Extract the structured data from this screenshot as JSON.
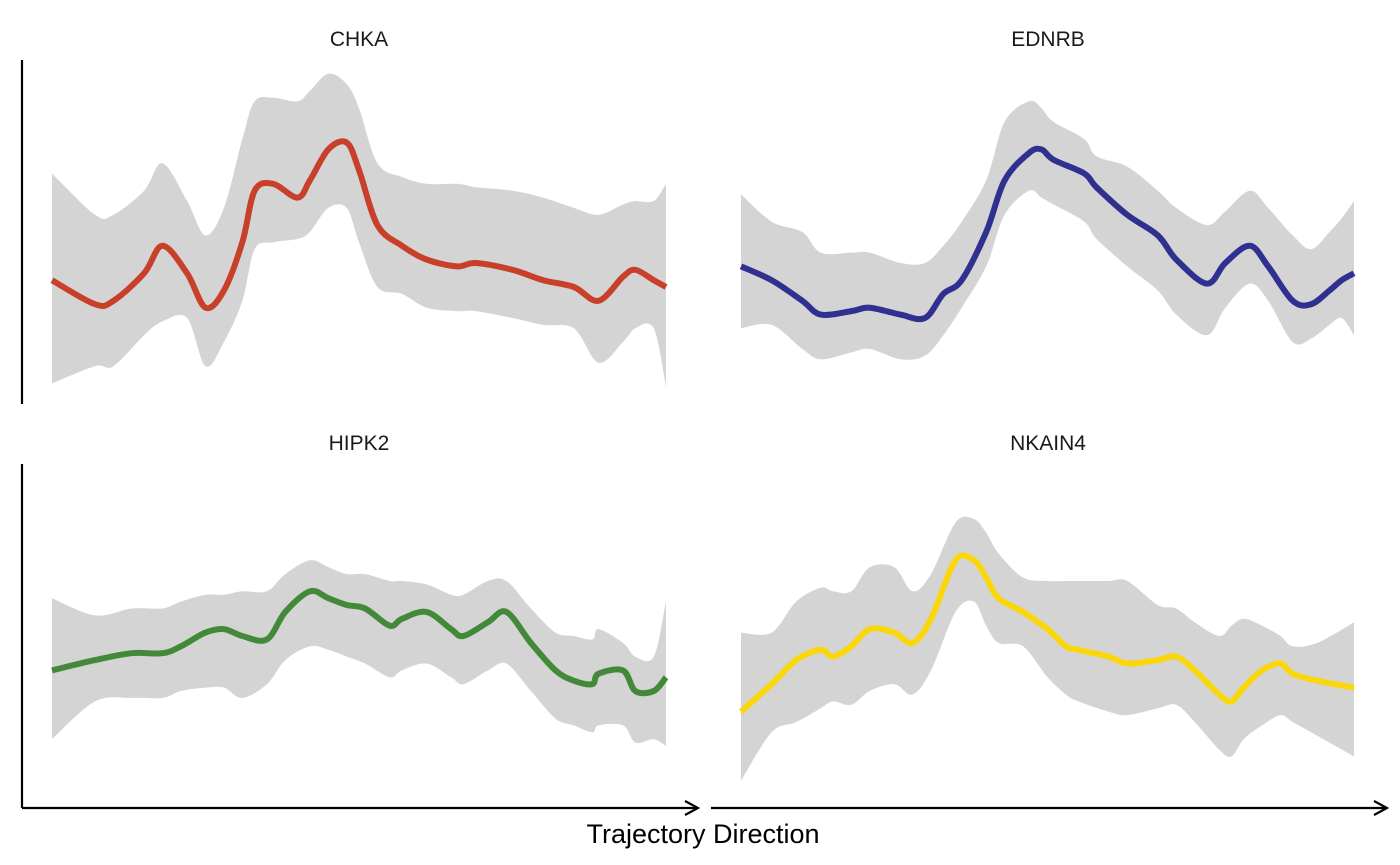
{
  "chart_data": {
    "type": "line",
    "xlabel": "Trajectory Direction",
    "grid": false,
    "x_range": [
      0,
      1
    ],
    "y_range": [
      0,
      1
    ],
    "panels": [
      {
        "title": "CHKA",
        "color": "#c8402a",
        "x": [
          0.0,
          0.07,
          0.1,
          0.15,
          0.18,
          0.22,
          0.25,
          0.28,
          0.31,
          0.33,
          0.36,
          0.4,
          0.42,
          0.45,
          0.48,
          0.5,
          0.53,
          0.57,
          0.61,
          0.66,
          0.69,
          0.75,
          0.8,
          0.85,
          0.89,
          0.93,
          0.95,
          0.98,
          1.0
        ],
        "y": [
          0.36,
          0.29,
          0.3,
          0.38,
          0.46,
          0.38,
          0.28,
          0.33,
          0.47,
          0.62,
          0.64,
          0.6,
          0.65,
          0.74,
          0.76,
          0.68,
          0.52,
          0.46,
          0.42,
          0.4,
          0.41,
          0.39,
          0.36,
          0.34,
          0.3,
          0.37,
          0.39,
          0.36,
          0.34
        ],
        "lower": [
          0.06,
          0.11,
          0.11,
          0.2,
          0.24,
          0.25,
          0.11,
          0.18,
          0.3,
          0.45,
          0.47,
          0.48,
          0.5,
          0.57,
          0.57,
          0.47,
          0.34,
          0.32,
          0.28,
          0.27,
          0.27,
          0.25,
          0.23,
          0.22,
          0.12,
          0.18,
          0.22,
          0.22,
          0.05
        ],
        "upper": [
          0.67,
          0.55,
          0.55,
          0.62,
          0.7,
          0.59,
          0.49,
          0.57,
          0.77,
          0.88,
          0.89,
          0.88,
          0.91,
          0.96,
          0.93,
          0.86,
          0.7,
          0.66,
          0.64,
          0.64,
          0.63,
          0.62,
          0.6,
          0.57,
          0.55,
          0.58,
          0.59,
          0.59,
          0.64
        ]
      },
      {
        "title": "EDNRB",
        "color": "#303090",
        "x": [
          0.0,
          0.05,
          0.1,
          0.13,
          0.18,
          0.21,
          0.26,
          0.3,
          0.33,
          0.36,
          0.4,
          0.43,
          0.47,
          0.49,
          0.51,
          0.56,
          0.58,
          0.63,
          0.68,
          0.71,
          0.76,
          0.79,
          0.83,
          0.86,
          0.9,
          0.93,
          0.96,
          0.98,
          1.0
        ],
        "y": [
          0.4,
          0.36,
          0.3,
          0.26,
          0.27,
          0.28,
          0.26,
          0.25,
          0.32,
          0.36,
          0.5,
          0.65,
          0.73,
          0.74,
          0.71,
          0.67,
          0.63,
          0.55,
          0.49,
          0.42,
          0.35,
          0.41,
          0.46,
          0.4,
          0.3,
          0.29,
          0.33,
          0.36,
          0.38
        ],
        "lower": [
          0.22,
          0.23,
          0.16,
          0.13,
          0.15,
          0.16,
          0.13,
          0.14,
          0.2,
          0.28,
          0.4,
          0.55,
          0.62,
          0.6,
          0.58,
          0.53,
          0.48,
          0.4,
          0.33,
          0.26,
          0.2,
          0.28,
          0.35,
          0.3,
          0.18,
          0.19,
          0.23,
          0.25,
          0.2
        ],
        "upper": [
          0.61,
          0.53,
          0.5,
          0.44,
          0.44,
          0.44,
          0.41,
          0.41,
          0.46,
          0.53,
          0.65,
          0.82,
          0.88,
          0.86,
          0.82,
          0.77,
          0.72,
          0.69,
          0.62,
          0.57,
          0.52,
          0.56,
          0.62,
          0.57,
          0.49,
          0.45,
          0.5,
          0.54,
          0.59
        ]
      },
      {
        "title": "HIPK2",
        "color": "#428a3a",
        "x": [
          0.0,
          0.07,
          0.13,
          0.18,
          0.21,
          0.25,
          0.28,
          0.31,
          0.35,
          0.38,
          0.42,
          0.45,
          0.48,
          0.51,
          0.55,
          0.57,
          0.61,
          0.65,
          0.67,
          0.71,
          0.74,
          0.78,
          0.82,
          0.85,
          0.88,
          0.89,
          0.93,
          0.95,
          0.98,
          1.0
        ],
        "y": [
          0.4,
          0.43,
          0.45,
          0.45,
          0.47,
          0.51,
          0.52,
          0.5,
          0.49,
          0.57,
          0.63,
          0.61,
          0.59,
          0.58,
          0.53,
          0.55,
          0.57,
          0.52,
          0.5,
          0.54,
          0.57,
          0.48,
          0.4,
          0.37,
          0.36,
          0.39,
          0.4,
          0.34,
          0.34,
          0.38
        ],
        "lower": [
          0.2,
          0.31,
          0.32,
          0.32,
          0.34,
          0.35,
          0.35,
          0.32,
          0.36,
          0.43,
          0.47,
          0.46,
          0.44,
          0.42,
          0.38,
          0.4,
          0.42,
          0.38,
          0.36,
          0.4,
          0.42,
          0.34,
          0.26,
          0.24,
          0.22,
          0.24,
          0.24,
          0.19,
          0.2,
          0.18
        ],
        "upper": [
          0.61,
          0.56,
          0.58,
          0.58,
          0.6,
          0.62,
          0.62,
          0.63,
          0.63,
          0.68,
          0.72,
          0.7,
          0.68,
          0.68,
          0.66,
          0.66,
          0.65,
          0.62,
          0.62,
          0.66,
          0.66,
          0.58,
          0.51,
          0.5,
          0.49,
          0.52,
          0.48,
          0.44,
          0.44,
          0.6
        ]
      },
      {
        "title": "NKAIN4",
        "color": "#f9d70b",
        "x": [
          0.0,
          0.05,
          0.09,
          0.13,
          0.15,
          0.18,
          0.21,
          0.25,
          0.28,
          0.31,
          0.35,
          0.38,
          0.4,
          0.42,
          0.46,
          0.5,
          0.53,
          0.55,
          0.6,
          0.63,
          0.68,
          0.71,
          0.74,
          0.78,
          0.8,
          0.82,
          0.85,
          0.88,
          0.9,
          0.94,
          1.0
        ],
        "y": [
          0.28,
          0.36,
          0.43,
          0.46,
          0.44,
          0.47,
          0.52,
          0.51,
          0.48,
          0.55,
          0.72,
          0.72,
          0.67,
          0.61,
          0.57,
          0.52,
          0.47,
          0.46,
          0.44,
          0.42,
          0.43,
          0.44,
          0.4,
          0.33,
          0.31,
          0.35,
          0.4,
          0.42,
          0.39,
          0.37,
          0.35
        ],
        "lower": [
          0.08,
          0.22,
          0.25,
          0.29,
          0.31,
          0.3,
          0.34,
          0.36,
          0.33,
          0.4,
          0.57,
          0.6,
          0.53,
          0.48,
          0.47,
          0.38,
          0.33,
          0.31,
          0.28,
          0.27,
          0.29,
          0.3,
          0.25,
          0.17,
          0.15,
          0.2,
          0.24,
          0.27,
          0.25,
          0.21,
          0.15
        ],
        "upper": [
          0.51,
          0.51,
          0.6,
          0.64,
          0.63,
          0.63,
          0.7,
          0.7,
          0.63,
          0.68,
          0.83,
          0.84,
          0.8,
          0.74,
          0.67,
          0.66,
          0.66,
          0.66,
          0.66,
          0.66,
          0.59,
          0.58,
          0.54,
          0.5,
          0.53,
          0.55,
          0.53,
          0.5,
          0.47,
          0.48,
          0.54
        ]
      }
    ]
  }
}
